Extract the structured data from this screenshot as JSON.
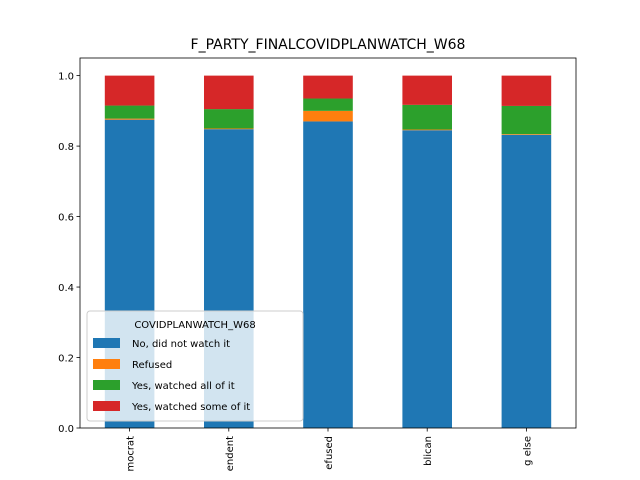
{
  "chart_data": {
    "type": "bar",
    "stacked": true,
    "title": "F_PARTY_FINALCOVIDPLANWATCH_W68",
    "xlabel": "",
    "ylabel": "",
    "categories": [
      "Democrat",
      "Independent",
      "Refused",
      "Republican",
      "Something else"
    ],
    "visible_category_labels": [
      "mocrat",
      "endent",
      "efused",
      "blican",
      "g else"
    ],
    "ylim": [
      0,
      1.05
    ],
    "yticks": [
      0.0,
      0.2,
      0.4,
      0.6,
      0.8,
      1.0
    ],
    "ytick_labels": [
      "0.0",
      "0.2",
      "0.4",
      "0.6",
      "0.8",
      "1.0"
    ],
    "grid": false,
    "legend": {
      "title": "COVIDPLANWATCH_W68",
      "placement": "lower-left"
    },
    "series": [
      {
        "name": "No, did not watch it",
        "color": "#1f77b4",
        "values": [
          0.875,
          0.848,
          0.87,
          0.845,
          0.832
        ]
      },
      {
        "name": "Refused",
        "color": "#ff7f0e",
        "values": [
          0.003,
          0.002,
          0.03,
          0.002,
          0.002
        ]
      },
      {
        "name": "Yes, watched all of it",
        "color": "#2ca02c",
        "values": [
          0.037,
          0.055,
          0.035,
          0.07,
          0.08
        ]
      },
      {
        "name": "Yes, watched some of it",
        "color": "#d62728",
        "values": [
          0.085,
          0.095,
          0.065,
          0.083,
          0.086
        ]
      }
    ]
  }
}
